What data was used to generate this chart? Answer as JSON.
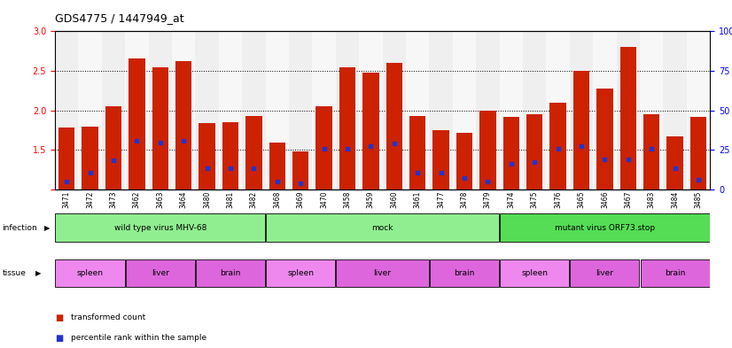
{
  "title": "GDS4775 / 1447949_at",
  "samples": [
    "3471",
    "3472",
    "3473",
    "3462",
    "3463",
    "3464",
    "3480",
    "3481",
    "3482",
    "3468",
    "3469",
    "3470",
    "3458",
    "3459",
    "3460",
    "3461",
    "3477",
    "3478",
    "3479",
    "3474",
    "3475",
    "3476",
    "3465",
    "3466",
    "3467",
    "3483",
    "3484",
    "3485"
  ],
  "red_values": [
    1.78,
    1.8,
    2.05,
    2.66,
    2.54,
    2.62,
    1.84,
    1.85,
    1.93,
    1.59,
    1.48,
    2.05,
    2.54,
    2.48,
    2.6,
    1.93,
    1.75,
    1.72,
    2.0,
    1.92,
    1.95,
    2.1,
    2.5,
    2.28,
    2.8,
    1.95,
    1.67,
    1.92
  ],
  "blue_positions": [
    1.1,
    1.22,
    1.37,
    1.62,
    1.6,
    1.62,
    1.27,
    1.27,
    1.27,
    1.1,
    1.08,
    1.52,
    1.52,
    1.55,
    1.58,
    1.22,
    1.22,
    1.15,
    1.1,
    1.33,
    1.35,
    1.52,
    1.55,
    1.38,
    1.38,
    1.52,
    1.27,
    1.12
  ],
  "infection_groups": [
    {
      "label": "wild type virus MHV-68",
      "start": 0,
      "end": 9,
      "color": "#90ee90"
    },
    {
      "label": "mock",
      "start": 9,
      "end": 19,
      "color": "#90ee90"
    },
    {
      "label": "mutant virus ORF73.stop",
      "start": 19,
      "end": 28,
      "color": "#55dd55"
    }
  ],
  "tissue_groups": [
    {
      "label": "spleen",
      "start": 0,
      "end": 3,
      "color": "#ee88ee"
    },
    {
      "label": "liver",
      "start": 3,
      "end": 6,
      "color": "#dd66dd"
    },
    {
      "label": "brain",
      "start": 6,
      "end": 9,
      "color": "#dd66dd"
    },
    {
      "label": "spleen",
      "start": 9,
      "end": 12,
      "color": "#ee88ee"
    },
    {
      "label": "liver",
      "start": 12,
      "end": 16,
      "color": "#dd66dd"
    },
    {
      "label": "brain",
      "start": 16,
      "end": 19,
      "color": "#dd66dd"
    },
    {
      "label": "spleen",
      "start": 19,
      "end": 22,
      "color": "#ee88ee"
    },
    {
      "label": "liver",
      "start": 22,
      "end": 25,
      "color": "#dd66dd"
    },
    {
      "label": "brain",
      "start": 25,
      "end": 28,
      "color": "#dd66dd"
    }
  ],
  "ylim": [
    1.0,
    3.0
  ],
  "yticks_left": [
    1.0,
    1.5,
    2.0,
    2.5,
    3.0
  ],
  "yticks_right": [
    0,
    25,
    50,
    75,
    100
  ],
  "bar_color": "#cc2200",
  "blue_color": "#2233cc",
  "bg_color": "#ffffff"
}
